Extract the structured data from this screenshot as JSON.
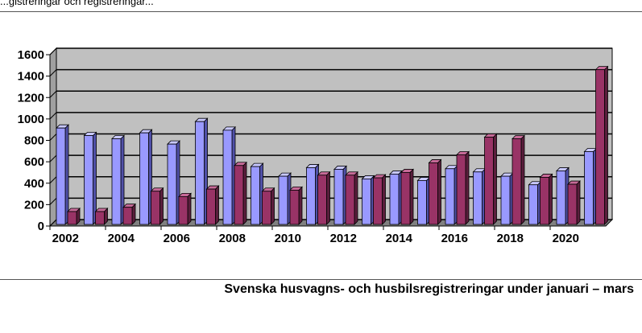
{
  "header": {
    "cut_text": "...gistreringar och registreringar..."
  },
  "caption": "Svenska husvagns- och husbilsregistreringar under januari – mars",
  "colors": {
    "plot_bg": "#c0c0c0",
    "series_1_front": "#9999ff",
    "series_1_side": "#5050a8",
    "series_1_top": "#c8c8ff",
    "series_2_front": "#993366",
    "series_2_side": "#5a1e3c",
    "series_2_top": "#c76a98",
    "grid": "#000000"
  },
  "chart_data": {
    "type": "bar",
    "title": "",
    "xlabel": "",
    "ylabel": "",
    "ylim": [
      0,
      1600
    ],
    "yticks": [
      0,
      200,
      400,
      600,
      800,
      1000,
      1200,
      1400,
      1600
    ],
    "x_tick_labels": [
      "2002",
      "2004",
      "2006",
      "2008",
      "2010",
      "2012",
      "2014",
      "2016",
      "2018",
      "2020"
    ],
    "categories": [
      "2002",
      "2003",
      "2004",
      "2005",
      "2006",
      "2007",
      "2008",
      "2009",
      "2010",
      "2011",
      "2012",
      "2013",
      "2014",
      "2015",
      "2016",
      "2017",
      "2018",
      "2019",
      "2020",
      "2021"
    ],
    "series": [
      {
        "values": [
          900,
          830,
          800,
          855,
          750,
          960,
          880,
          540,
          450,
          530,
          515,
          425,
          470,
          410,
          520,
          490,
          450,
          370,
          500,
          680
        ]
      },
      {
        "values": [
          120,
          120,
          160,
          310,
          260,
          330,
          550,
          310,
          320,
          460,
          460,
          435,
          485,
          575,
          650,
          815,
          800,
          440,
          375,
          1445
        ]
      }
    ],
    "grid": true,
    "legend": "none"
  }
}
